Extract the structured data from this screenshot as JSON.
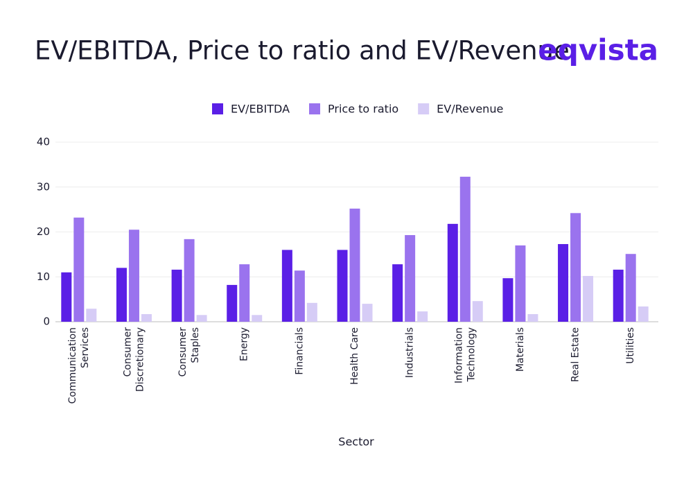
{
  "brand": "eqvista",
  "chart_data": {
    "type": "bar",
    "title": "EV/EBITDA, Price to ratio and EV/Revenue",
    "x_label": "Sector",
    "categories": [
      "Communication Services",
      "Consumer Discretionary",
      "Consumer Staples",
      "Energy",
      "Financials",
      "Health Care",
      "Industrials",
      "Information Technology",
      "Materials",
      "Real Estate",
      "Utilities"
    ],
    "series": [
      {
        "name": "EV/EBITDA",
        "color": "#5a1fe6",
        "values": [
          11,
          12,
          11.6,
          8.2,
          16,
          16,
          12.8,
          21.8,
          9.7,
          17.3,
          11.6
        ]
      },
      {
        "name": "Price to ratio",
        "color": "#9a73ee",
        "values": [
          23.2,
          20.5,
          18.4,
          12.8,
          11.4,
          25.2,
          19.3,
          32.3,
          17,
          24.2,
          15.1
        ]
      },
      {
        "name": "EV/Revenue",
        "color": "#d6ccf6",
        "values": [
          2.9,
          1.7,
          1.5,
          1.5,
          4.2,
          4,
          2.3,
          4.6,
          1.7,
          10.2,
          3.4
        ]
      }
    ],
    "ylim": [
      0,
      40
    ],
    "yticks": [
      0,
      10,
      20,
      30,
      40
    ],
    "grid": true,
    "legend": "top"
  }
}
